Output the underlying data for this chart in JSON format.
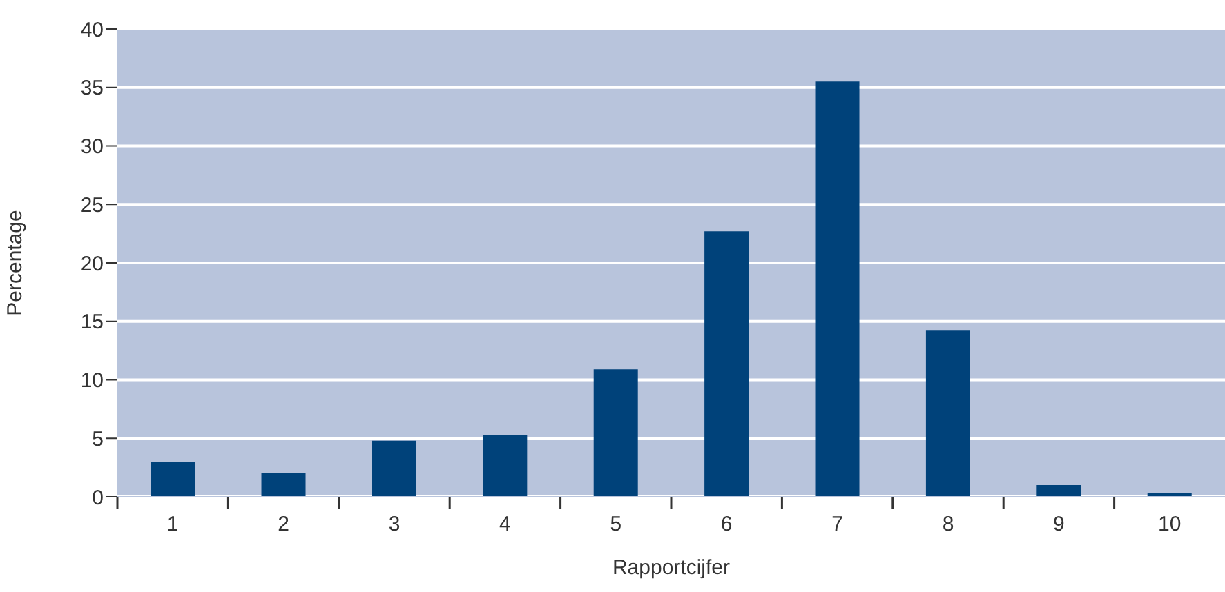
{
  "chart_data": {
    "type": "bar",
    "xlabel": "Rapportcijfer",
    "ylabel": "Percentage",
    "categories": [
      "1",
      "2",
      "3",
      "4",
      "5",
      "6",
      "7",
      "8",
      "9",
      "10"
    ],
    "values": [
      3.0,
      2.0,
      4.8,
      5.3,
      10.9,
      22.7,
      35.5,
      14.2,
      1.0,
      0.3
    ],
    "color": "#00427a",
    "ylim": [
      0,
      40
    ],
    "yticks": [
      0,
      5,
      10,
      15,
      20,
      25,
      30,
      35,
      40
    ],
    "grid": "y"
  }
}
